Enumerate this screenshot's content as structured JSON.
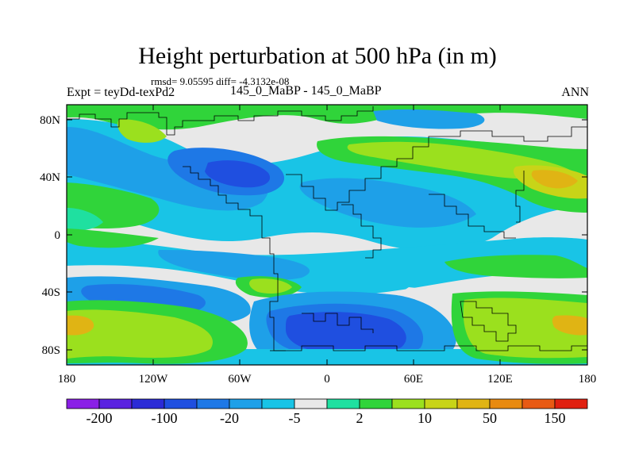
{
  "title": "Height perturbation at 500 hPa (in m)",
  "stats": "rmsd= 9.05595 diff= -4.3132e-08",
  "experiment": "Expt = teyDd-texPd2",
  "cases": "145_0_MaBP - 145_0_MaBP",
  "season": "ANN",
  "lat_labels": [
    "80N",
    "40N",
    "0",
    "40S",
    "80S"
  ],
  "lon_labels": [
    "180",
    "120W",
    "60W",
    "0",
    "60E",
    "120E",
    "180"
  ],
  "colorbar": {
    "labels": [
      "-200",
      "-100",
      "-20",
      "-5",
      "2",
      "10",
      "50",
      "150"
    ],
    "colors": [
      "#8a1fe6",
      "#5a22e0",
      "#2b2bd6",
      "#1f4fe0",
      "#1e78e6",
      "#1ea0e8",
      "#19c4e6",
      "#e8e8e8",
      "#1fe0a0",
      "#30d43a",
      "#9be01e",
      "#c8d418",
      "#e0b414",
      "#e88a10",
      "#e85a14",
      "#e02010"
    ]
  },
  "legend_colors": {
    "land_outline": "#000000",
    "neutral": "#e8e8e8",
    "light_blue": "#19c4e6",
    "mid_blue": "#1ea0e8",
    "blue": "#1e78e6",
    "dark_blue": "#1f4fe0",
    "teal": "#1fe0a0",
    "green": "#30d43a",
    "yellow_green": "#9be01e",
    "olive": "#c8d418",
    "gold": "#e0b414"
  }
}
